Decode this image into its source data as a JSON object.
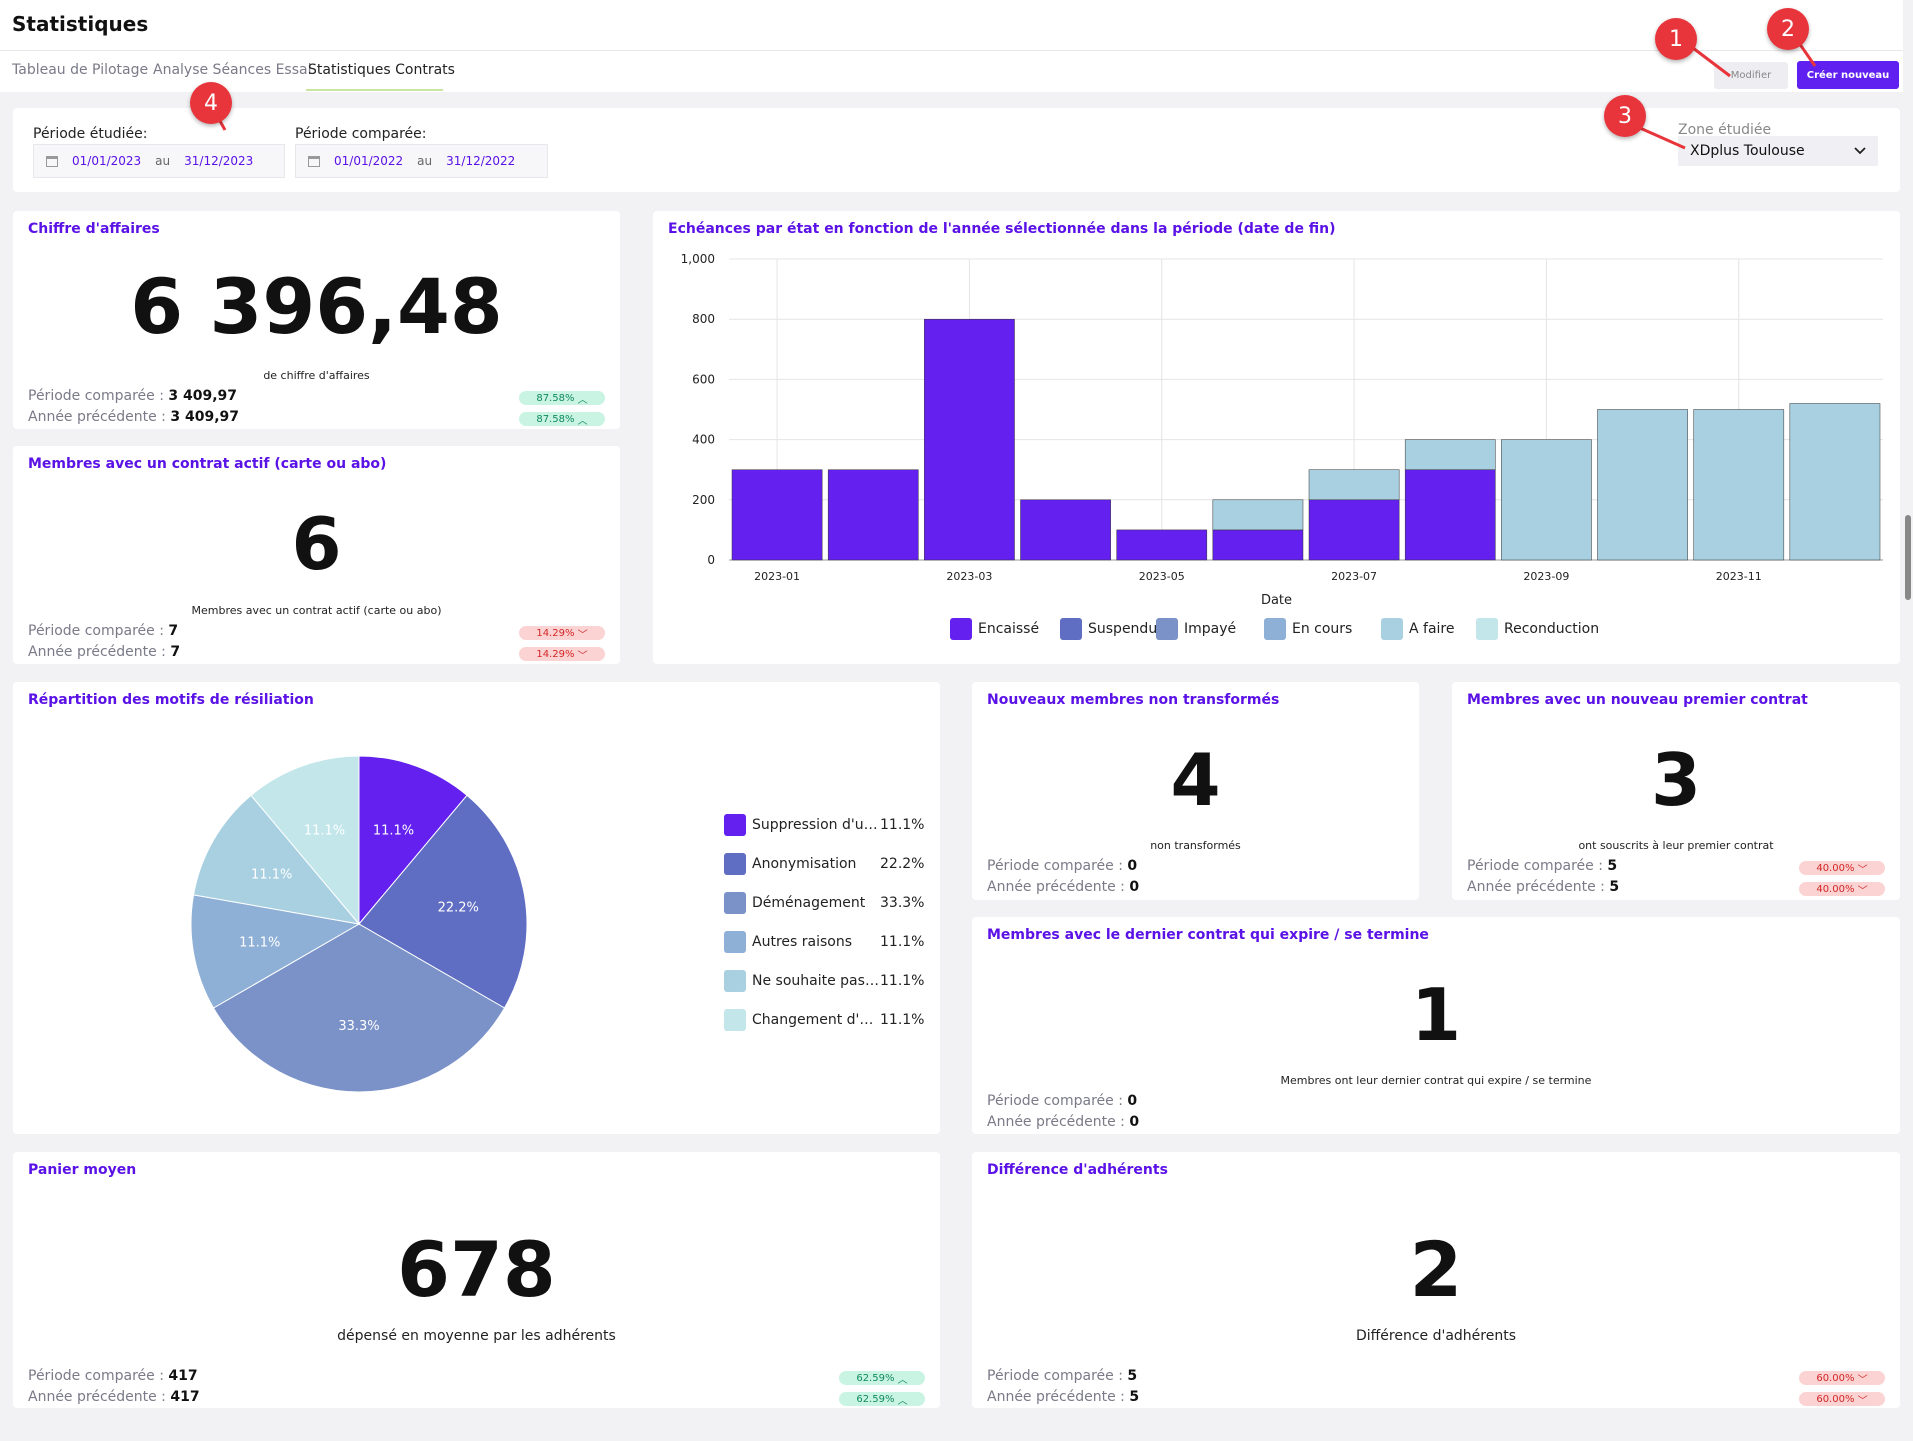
{
  "page": {
    "title": "Statistiques"
  },
  "tabs": [
    "Tableau de Pilotage",
    "Analyse Séances Essai",
    "Statistiques Contrats"
  ],
  "buttons": {
    "modifier": "Modifier",
    "create": "Créer nouveau"
  },
  "markers": [
    "1",
    "2",
    "3",
    "4"
  ],
  "filters": {
    "period_label": "Période étudiée:",
    "period_from": "01/01/2023",
    "period_to": "31/12/2023",
    "compare_label": "Période comparée:",
    "compare_from": "01/01/2022",
    "compare_to": "31/12/2022",
    "au": "au",
    "zone_label": "Zone étudiée",
    "zone_value": "XDplus Toulouse"
  },
  "labels": {
    "periode_comparee": "Période comparée : ",
    "annee_precedente": "Année précédente : "
  },
  "ca": {
    "title": "Chiffre d'affaires",
    "value": "6 396,48",
    "sub": "de chiffre d'affaires",
    "compare": "3 409,97",
    "previous": "3 409,97",
    "badge1": "87.58%",
    "badge2": "87.58%"
  },
  "membres_actifs": {
    "title": "Membres avec un contrat actif (carte ou abo)",
    "value": "6",
    "sub": "Membres avec un contrat actif (carte ou abo)",
    "compare": "7",
    "previous": "7",
    "badge1": "14.29%",
    "badge2": "14.29%"
  },
  "nouveaux": {
    "title": "Nouveaux membres non transformés",
    "value": "4",
    "sub": "non transformés",
    "compare": "0",
    "previous": "0"
  },
  "premier": {
    "title": "Membres avec un nouveau premier contrat",
    "value": "3",
    "sub": "ont souscrits à leur premier contrat",
    "compare": "5",
    "previous": "5",
    "badge1": "40.00%",
    "badge2": "40.00%"
  },
  "dernier": {
    "title": "Membres avec le dernier contrat qui expire / se termine",
    "value": "1",
    "sub": "Membres ont leur dernier contrat qui expire / se termine",
    "compare": "0",
    "previous": "0"
  },
  "panier": {
    "title": "Panier moyen",
    "value": "678",
    "sub": "dépensé en moyenne par les adhérents",
    "compare": "417",
    "previous": "417",
    "badge1": "62.59%",
    "badge2": "62.59%"
  },
  "difference": {
    "title": "Différence d'adhérents",
    "value": "2",
    "sub": "Différence d'adhérents",
    "compare": "5",
    "previous": "5",
    "badge1": "60.00%",
    "badge2": "60.00%"
  },
  "chart_data": [
    {
      "type": "bar",
      "stacked": true,
      "title": "Echéances par état en fonction de l'année sélectionnée dans la période (date de fin)",
      "xlabel": "Date",
      "ylabel": "",
      "ylim": [
        0,
        1000
      ],
      "yticks": [
        "0",
        "200",
        "400",
        "600",
        "800",
        "1,000"
      ],
      "categories": [
        "2023-01",
        "2023-02",
        "2023-03",
        "2023-04",
        "2023-05",
        "2023-06",
        "2023-07",
        "2023-08",
        "2023-09",
        "2023-10",
        "2023-11",
        "2023-12"
      ],
      "xtick_labels": [
        "2023-01",
        "",
        "2023-03",
        "",
        "2023-05",
        "",
        "2023-07",
        "",
        "2023-09",
        "",
        "2023-11",
        ""
      ],
      "legend_position": "bottom",
      "series": [
        {
          "name": "Encaissé",
          "color": "#6320ee",
          "values": [
            300,
            300,
            800,
            200,
            100,
            100,
            200,
            300,
            0,
            0,
            0,
            0
          ]
        },
        {
          "name": "Suspendu",
          "color": "#5f6dc2",
          "values": [
            0,
            0,
            0,
            0,
            0,
            0,
            0,
            0,
            0,
            0,
            0,
            0
          ]
        },
        {
          "name": "Impayé",
          "color": "#7a92c8",
          "values": [
            0,
            0,
            0,
            0,
            0,
            0,
            0,
            0,
            0,
            0,
            0,
            0
          ]
        },
        {
          "name": "En cours",
          "color": "#8fb0d6",
          "values": [
            0,
            0,
            0,
            0,
            0,
            0,
            0,
            0,
            0,
            0,
            0,
            0
          ]
        },
        {
          "name": "A faire",
          "color": "#a8d0e0",
          "values": [
            0,
            0,
            0,
            0,
            0,
            100,
            100,
            100,
            400,
            500,
            500,
            520
          ]
        },
        {
          "name": "Reconduction",
          "color": "#c2e6ea",
          "values": [
            0,
            0,
            0,
            0,
            0,
            0,
            0,
            0,
            0,
            0,
            0,
            0
          ]
        }
      ]
    },
    {
      "type": "pie",
      "title": "Répartition des motifs de résiliation",
      "legend_position": "right",
      "slices": [
        {
          "label": "Suppression d'un...",
          "value": 11.1,
          "text": "11.1%",
          "color": "#6320ee"
        },
        {
          "label": "Anonymisation",
          "value": 22.2,
          "text": "22.2%",
          "color": "#5f6dc2"
        },
        {
          "label": "Déménagement",
          "value": 33.3,
          "text": "33.3%",
          "color": "#7a92c8"
        },
        {
          "label": "Autres raisons",
          "value": 11.1,
          "text": "11.1%",
          "color": "#8fb0d6"
        },
        {
          "label": "Ne souhaite pas ...",
          "value": 11.1,
          "text": "11.1%",
          "color": "#a8d0e0"
        },
        {
          "label": "Changement d'h...",
          "value": 11.1,
          "text": "11.1%",
          "color": "#c2e6ea"
        }
      ]
    }
  ]
}
